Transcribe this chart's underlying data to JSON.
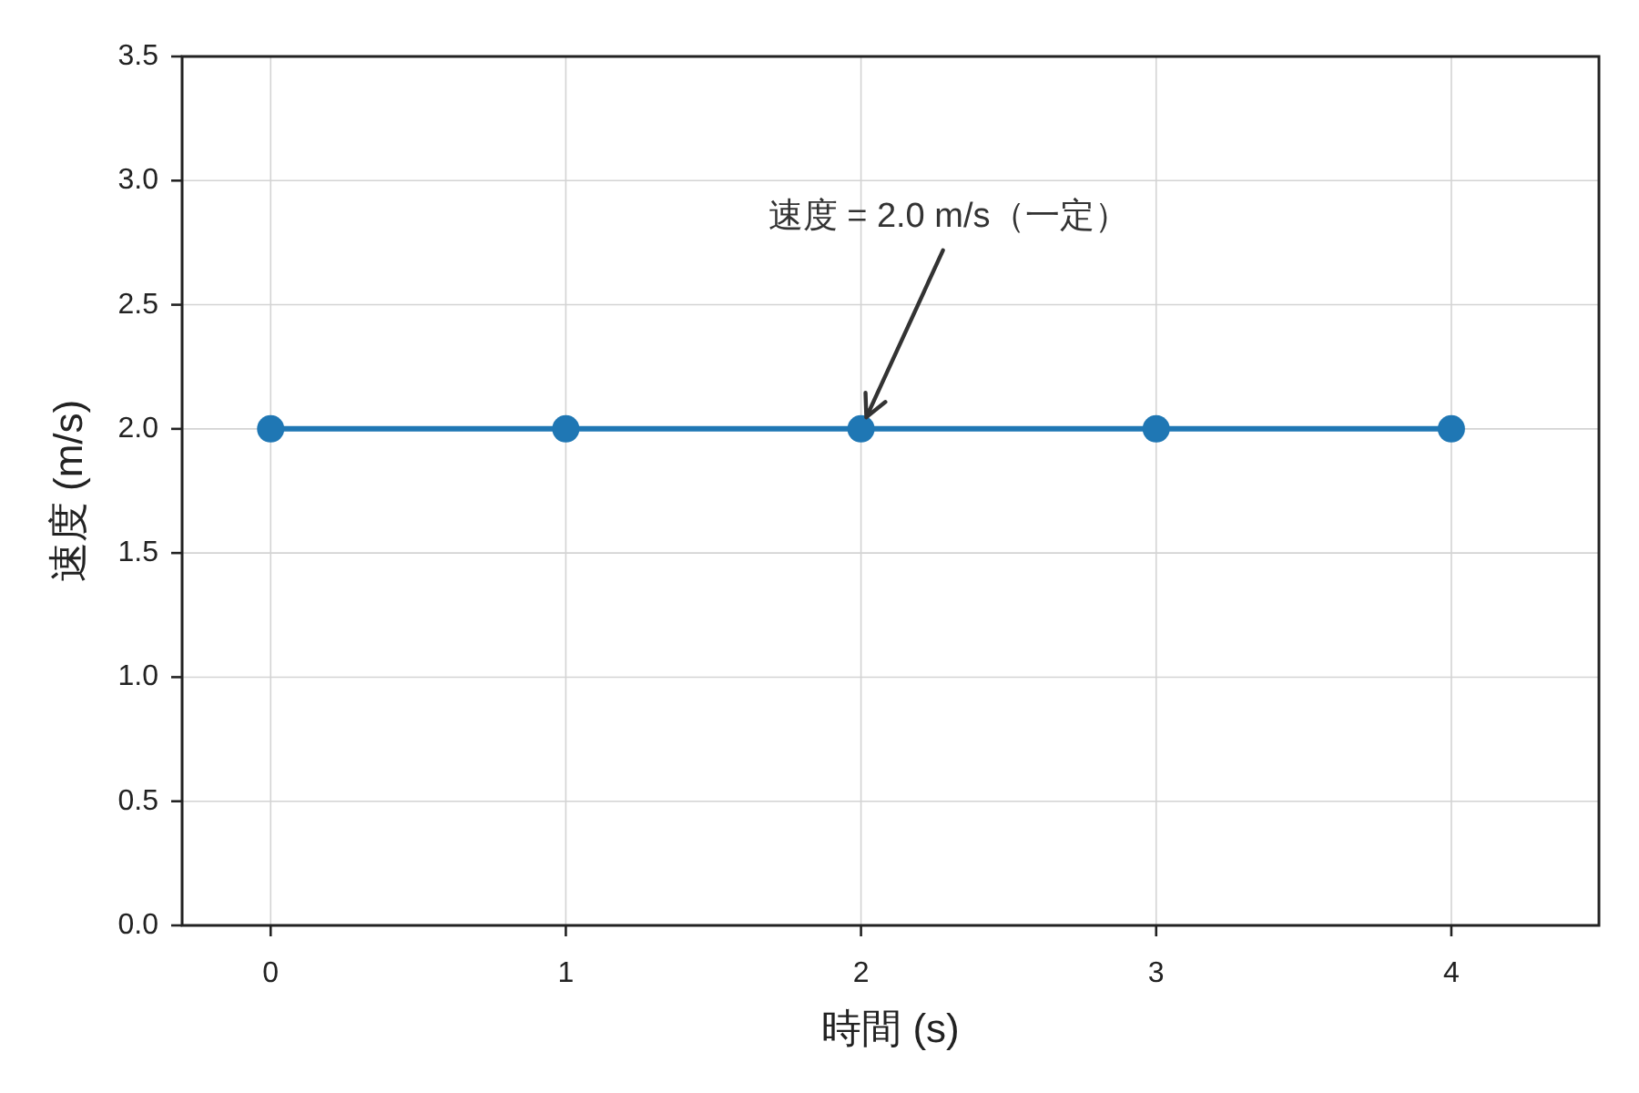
{
  "chart_data": {
    "type": "line",
    "xlabel": "時間 (s)",
    "ylabel": "速度 (m/s)",
    "x": [
      0,
      1,
      2,
      3,
      4
    ],
    "series": [
      {
        "color": "#1f77b4",
        "values": [
          2.0,
          2.0,
          2.0,
          2.0,
          2.0
        ]
      }
    ],
    "xlim": [
      -0.3,
      4.5
    ],
    "ylim": [
      0,
      3.5
    ],
    "xticks": [
      0,
      1,
      2,
      3,
      4
    ],
    "yticks": [
      {
        "value": 0,
        "label": "0.0"
      },
      0.5,
      {
        "value": 1,
        "label": "1.0"
      },
      1.5,
      {
        "value": 2,
        "label": "2.0"
      },
      2.5,
      {
        "value": 3,
        "label": "3.0"
      },
      3.5
    ],
    "grid": true,
    "marker": "circle",
    "line_style": "solid",
    "annotations": [
      {
        "text": "速度 = 2.0 m/s（一定）",
        "x": 2,
        "y": 2
      }
    ]
  }
}
